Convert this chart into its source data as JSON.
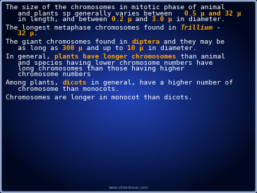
{
  "bg_center": "#2244aa",
  "bg_edge": "#000820",
  "border_color": "#aabbdd",
  "text_white": "#ffffff",
  "text_orange": "#FFA500",
  "watermark": "www.sliderbase.com",
  "watermark_color": "#8899cc",
  "font_size": 6.8,
  "font_family": "monospace",
  "paragraphs": [
    {
      "lines": [
        [
          {
            "t": "The size of the chromosomes in mitotic phase of animal",
            "c": "#ffffff",
            "b": false,
            "i": false
          }
        ],
        [
          {
            "t": "   and plants sp generally varies between   ",
            "c": "#ffffff",
            "b": false,
            "i": false
          },
          {
            "t": "0.5 μ and 32 μ",
            "c": "#FFA500",
            "b": true,
            "i": false
          }
        ],
        [
          {
            "t": "   in length, and between ",
            "c": "#ffffff",
            "b": false,
            "i": false
          },
          {
            "t": "0.2 μ",
            "c": "#FFA500",
            "b": true,
            "i": false
          },
          {
            "t": " and ",
            "c": "#ffffff",
            "b": false,
            "i": false
          },
          {
            "t": "3.0 μ",
            "c": "#FFA500",
            "b": true,
            "i": false
          },
          {
            "t": " in diameter.",
            "c": "#ffffff",
            "b": false,
            "i": false
          }
        ]
      ]
    },
    {
      "lines": [
        [
          {
            "t": "The longest metaphase chromosomes found in ",
            "c": "#ffffff",
            "b": false,
            "i": false
          },
          {
            "t": "Trillium",
            "c": "#FFA500",
            "b": true,
            "i": true
          },
          {
            "t": " -",
            "c": "#ffffff",
            "b": false,
            "i": false
          }
        ],
        [
          {
            "t": "   ",
            "c": "#ffffff",
            "b": false,
            "i": false
          },
          {
            "t": "32 μ",
            "c": "#FFA500",
            "b": true,
            "i": false
          },
          {
            "t": ".",
            "c": "#ffffff",
            "b": false,
            "i": false
          }
        ]
      ]
    },
    {
      "lines": [
        [
          {
            "t": "The giant chromosomes found in ",
            "c": "#ffffff",
            "b": false,
            "i": false
          },
          {
            "t": "diptera",
            "c": "#FFA500",
            "b": true,
            "i": false
          },
          {
            "t": " and they may be",
            "c": "#ffffff",
            "b": false,
            "i": false
          }
        ],
        [
          {
            "t": "   as long as ",
            "c": "#ffffff",
            "b": false,
            "i": false
          },
          {
            "t": "300 μ",
            "c": "#FFA500",
            "b": true,
            "i": false
          },
          {
            "t": " and up to ",
            "c": "#ffffff",
            "b": false,
            "i": false
          },
          {
            "t": "10 μ",
            "c": "#FFA500",
            "b": true,
            "i": false
          },
          {
            "t": " in diameter.",
            "c": "#ffffff",
            "b": false,
            "i": false
          }
        ]
      ]
    },
    {
      "lines": [
        [
          {
            "t": "In general, ",
            "c": "#ffffff",
            "b": false,
            "i": false
          },
          {
            "t": "plants have longer chromosomes",
            "c": "#FFA500",
            "b": true,
            "i": false
          },
          {
            "t": " than animal",
            "c": "#ffffff",
            "b": false,
            "i": false
          }
        ],
        [
          {
            "t": "   and species having lower chromosome numbers have",
            "c": "#ffffff",
            "b": false,
            "i": false
          }
        ],
        [
          {
            "t": "   long chromosomes than those having higher",
            "c": "#ffffff",
            "b": false,
            "i": false
          }
        ],
        [
          {
            "t": "   chromosome numbers",
            "c": "#ffffff",
            "b": false,
            "i": false
          }
        ]
      ]
    },
    {
      "lines": [
        [
          {
            "t": "Among plants, ",
            "c": "#ffffff",
            "b": false,
            "i": false
          },
          {
            "t": "dicots",
            "c": "#FFA500",
            "b": true,
            "i": false
          },
          {
            "t": " in general, have a higher number of",
            "c": "#ffffff",
            "b": false,
            "i": false
          }
        ],
        [
          {
            "t": "   chromosome than monocots.",
            "c": "#ffffff",
            "b": false,
            "i": false
          }
        ]
      ]
    },
    {
      "lines": [
        [
          {
            "t": "Chromosomes are longer in monocot than dicots.",
            "c": "#ffffff",
            "b": false,
            "i": false
          }
        ]
      ]
    }
  ]
}
